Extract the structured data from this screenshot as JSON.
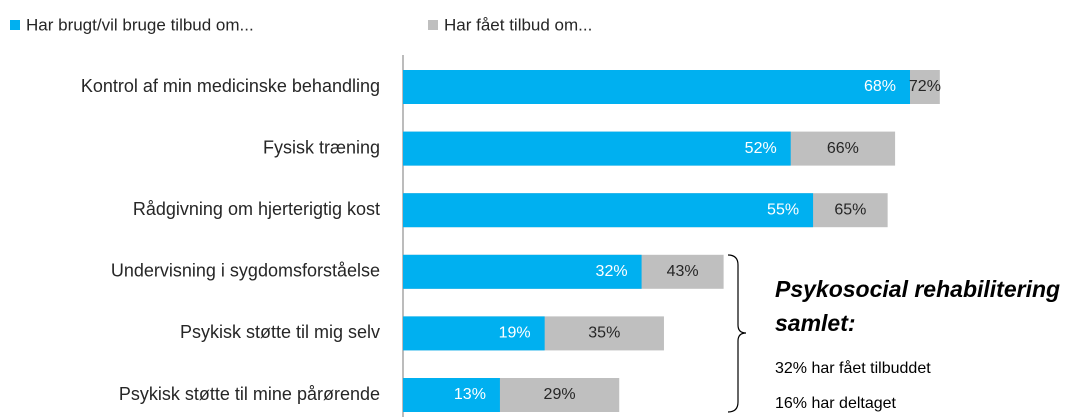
{
  "chart_data": {
    "type": "bar",
    "orientation": "horizontal",
    "overlap": true,
    "categories": [
      "Kontrol af min medicinske behandling",
      "Fysisk træning",
      "Rådgivning om hjerterigtig kost",
      "Undervisning i sygdomsforståelse",
      "Psykisk støtte til mig selv",
      "Psykisk støtte til mine pårørende"
    ],
    "series": [
      {
        "name": "Har brugt/vil bruge tilbud om...",
        "color": "#00b0f0",
        "values": [
          68,
          52,
          55,
          32,
          19,
          13
        ],
        "value_labels": [
          "68%",
          "52%",
          "55%",
          "32%",
          "19%",
          "13%"
        ]
      },
      {
        "name": "Har fået tilbud om...",
        "color": "#bfbfbf",
        "values": [
          72,
          66,
          65,
          43,
          35,
          29
        ],
        "value_labels": [
          "72%",
          "66%",
          "65%",
          "43%",
          "35%",
          "29%"
        ]
      }
    ],
    "legend": "top",
    "annotation": {
      "title": "Psykosocial rehabilitering samlet:",
      "lines": [
        "32% har fået tilbuddet",
        "16% har deltaget"
      ]
    }
  }
}
